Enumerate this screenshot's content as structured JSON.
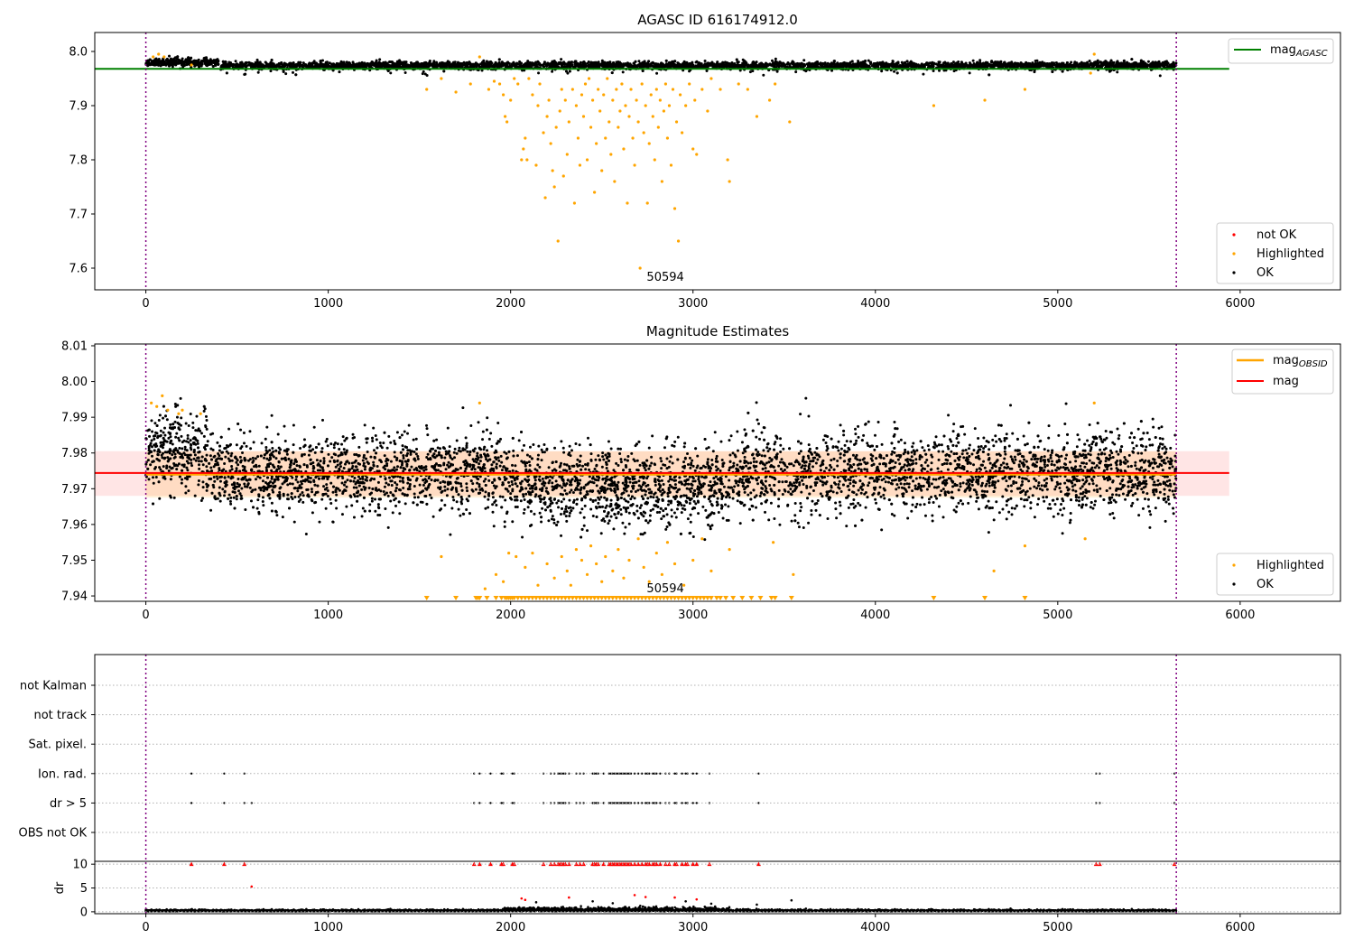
{
  "chart_data": [
    {
      "type": "scatter",
      "title": "AGASC ID 616174912.0",
      "xlim": [
        -280,
        6550
      ],
      "ylim": [
        7.56,
        8.035
      ],
      "x_ticks": [
        "0",
        "1000",
        "2000",
        "3000",
        "4000",
        "5000",
        "6000"
      ],
      "y_ticks": [
        "7.6",
        "7.7",
        "7.8",
        "7.9",
        "8.0"
      ],
      "legend_top": {
        "position": "top-right",
        "entries": [
          {
            "name": "mag",
            "subscript": "AGASC",
            "color": "#008000"
          }
        ]
      },
      "legend_bottom": {
        "position": "bottom-right",
        "entries": [
          {
            "name": "not OK",
            "color": "#ff0000"
          },
          {
            "name": "Highlighted",
            "color": "#ffa500"
          },
          {
            "name": "OK",
            "color": "#000000"
          }
        ]
      },
      "mag_agasc": 7.968,
      "mag_agasc_x_range": [
        -280,
        5940
      ],
      "obsid_label": "50594",
      "obsid_label_x": 2700,
      "obsid_bounds_x": [
        0,
        5650
      ],
      "ok_band": {
        "x_range": [
          0,
          5650
        ],
        "center": 7.974,
        "half_width": 0.007,
        "min": 7.955
      },
      "highlighted": [
        [
          1540,
          7.93
        ],
        [
          1620,
          7.95
        ],
        [
          1700,
          7.925
        ],
        [
          1780,
          7.94
        ],
        [
          1830,
          7.99
        ],
        [
          1880,
          7.93
        ],
        [
          1910,
          7.945
        ],
        [
          1940,
          7.94
        ],
        [
          1960,
          7.92
        ],
        [
          1970,
          7.88
        ],
        [
          1980,
          7.87
        ],
        [
          2000,
          7.91
        ],
        [
          2020,
          7.95
        ],
        [
          2040,
          7.94
        ],
        [
          2060,
          7.8
        ],
        [
          2070,
          7.82
        ],
        [
          2080,
          7.84
        ],
        [
          2090,
          7.8
        ],
        [
          2100,
          7.95
        ],
        [
          2120,
          7.92
        ],
        [
          2140,
          7.79
        ],
        [
          2150,
          7.9
        ],
        [
          2160,
          7.94
        ],
        [
          2180,
          7.85
        ],
        [
          2190,
          7.73
        ],
        [
          2200,
          7.88
        ],
        [
          2210,
          7.91
        ],
        [
          2220,
          7.83
        ],
        [
          2230,
          7.78
        ],
        [
          2240,
          7.75
        ],
        [
          2250,
          7.86
        ],
        [
          2260,
          7.65
        ],
        [
          2270,
          7.89
        ],
        [
          2280,
          7.93
        ],
        [
          2290,
          7.77
        ],
        [
          2300,
          7.91
        ],
        [
          2310,
          7.81
        ],
        [
          2320,
          7.87
        ],
        [
          2340,
          7.93
        ],
        [
          2350,
          7.72
        ],
        [
          2360,
          7.9
        ],
        [
          2370,
          7.84
        ],
        [
          2380,
          7.79
        ],
        [
          2390,
          7.92
        ],
        [
          2400,
          7.88
        ],
        [
          2410,
          7.94
        ],
        [
          2420,
          7.8
        ],
        [
          2430,
          7.95
        ],
        [
          2440,
          7.86
        ],
        [
          2450,
          7.91
        ],
        [
          2460,
          7.74
        ],
        [
          2470,
          7.83
        ],
        [
          2480,
          7.93
        ],
        [
          2490,
          7.89
        ],
        [
          2500,
          7.78
        ],
        [
          2510,
          7.92
        ],
        [
          2520,
          7.84
        ],
        [
          2530,
          7.95
        ],
        [
          2540,
          7.87
        ],
        [
          2550,
          7.81
        ],
        [
          2560,
          7.91
        ],
        [
          2570,
          7.76
        ],
        [
          2580,
          7.93
        ],
        [
          2590,
          7.86
        ],
        [
          2600,
          7.89
        ],
        [
          2610,
          7.94
        ],
        [
          2620,
          7.82
        ],
        [
          2630,
          7.9
        ],
        [
          2640,
          7.72
        ],
        [
          2650,
          7.88
        ],
        [
          2660,
          7.93
        ],
        [
          2670,
          7.84
        ],
        [
          2680,
          7.79
        ],
        [
          2690,
          7.91
        ],
        [
          2700,
          7.87
        ],
        [
          2710,
          7.6
        ],
        [
          2720,
          7.94
        ],
        [
          2730,
          7.85
        ],
        [
          2740,
          7.9
        ],
        [
          2750,
          7.72
        ],
        [
          2760,
          7.83
        ],
        [
          2770,
          7.92
        ],
        [
          2780,
          7.88
        ],
        [
          2790,
          7.8
        ],
        [
          2800,
          7.93
        ],
        [
          2810,
          7.86
        ],
        [
          2820,
          7.91
        ],
        [
          2830,
          7.76
        ],
        [
          2840,
          7.89
        ],
        [
          2850,
          7.94
        ],
        [
          2860,
          7.84
        ],
        [
          2870,
          7.9
        ],
        [
          2880,
          7.79
        ],
        [
          2890,
          7.93
        ],
        [
          2900,
          7.71
        ],
        [
          2910,
          7.87
        ],
        [
          2920,
          7.65
        ],
        [
          2930,
          7.92
        ],
        [
          2940,
          7.85
        ],
        [
          2960,
          7.9
        ],
        [
          2980,
          7.94
        ],
        [
          3000,
          7.82
        ],
        [
          3010,
          7.91
        ],
        [
          3020,
          7.81
        ],
        [
          3050,
          7.93
        ],
        [
          3080,
          7.89
        ],
        [
          3100,
          7.95
        ],
        [
          3150,
          7.93
        ],
        [
          3190,
          7.8
        ],
        [
          3200,
          7.76
        ],
        [
          3250,
          7.94
        ],
        [
          3300,
          7.93
        ],
        [
          3350,
          7.88
        ],
        [
          3420,
          7.91
        ],
        [
          3450,
          7.94
        ],
        [
          3530,
          7.87
        ],
        [
          4320,
          7.9
        ],
        [
          4600,
          7.91
        ],
        [
          4820,
          7.93
        ],
        [
          5200,
          7.995
        ],
        [
          5180,
          7.96
        ],
        [
          40,
          7.99
        ],
        [
          70,
          7.995
        ],
        [
          100,
          7.99
        ],
        [
          250,
          7.975
        ]
      ]
    },
    {
      "type": "scatter",
      "title": "Magnitude Estimates",
      "xlim": [
        -280,
        6550
      ],
      "ylim": [
        7.9385,
        8.0105
      ],
      "x_ticks": [
        "0",
        "1000",
        "2000",
        "3000",
        "4000",
        "5000",
        "6000"
      ],
      "y_ticks": [
        "7.94",
        "7.95",
        "7.96",
        "7.97",
        "7.98",
        "7.99",
        "8.00",
        "8.01"
      ],
      "legend_top": {
        "position": "top-right",
        "entries": [
          {
            "name": "mag",
            "subscript": "OBSID",
            "color": "#ffa500"
          },
          {
            "name": "mag",
            "color": "#ff0000"
          }
        ]
      },
      "legend_bottom": {
        "position": "bottom-right",
        "entries": [
          {
            "name": "Highlighted",
            "color": "#ffa500"
          },
          {
            "name": "OK",
            "color": "#000000"
          }
        ]
      },
      "mag": 7.9744,
      "mag_band": [
        7.968,
        7.9805
      ],
      "mag_x_range": [
        -280,
        5940
      ],
      "mag_obsid": 7.974,
      "mag_obsid_band": [
        7.9675,
        7.9805
      ],
      "mag_obsid_x_range": [
        0,
        5650
      ],
      "obsid_label": "50594",
      "obsid_label_x": 2700,
      "obsid_bounds_x": [
        0,
        5650
      ],
      "highlighted": [
        [
          30,
          7.994
        ],
        [
          60,
          7.993
        ],
        [
          90,
          7.996
        ],
        [
          120,
          7.992
        ],
        [
          180,
          7.991
        ],
        [
          200,
          7.992
        ],
        [
          300,
          7.991
        ],
        [
          1830,
          7.994
        ],
        [
          5200,
          7.994
        ],
        [
          1620,
          7.951
        ],
        [
          1860,
          7.942
        ],
        [
          1920,
          7.946
        ],
        [
          1960,
          7.944
        ],
        [
          1990,
          7.952
        ],
        [
          2030,
          7.951
        ],
        [
          2080,
          7.948
        ],
        [
          2120,
          7.952
        ],
        [
          2150,
          7.943
        ],
        [
          2200,
          7.949
        ],
        [
          2240,
          7.945
        ],
        [
          2280,
          7.951
        ],
        [
          2310,
          7.947
        ],
        [
          2330,
          7.943
        ],
        [
          2360,
          7.953
        ],
        [
          2390,
          7.95
        ],
        [
          2420,
          7.946
        ],
        [
          2440,
          7.954
        ],
        [
          2470,
          7.949
        ],
        [
          2500,
          7.944
        ],
        [
          2520,
          7.951
        ],
        [
          2560,
          7.947
        ],
        [
          2590,
          7.953
        ],
        [
          2620,
          7.945
        ],
        [
          2650,
          7.95
        ],
        [
          2700,
          7.956
        ],
        [
          2730,
          7.948
        ],
        [
          2760,
          7.944
        ],
        [
          2800,
          7.952
        ],
        [
          2830,
          7.946
        ],
        [
          2860,
          7.955
        ],
        [
          2900,
          7.949
        ],
        [
          2950,
          7.943
        ],
        [
          3000,
          7.95
        ],
        [
          3050,
          7.956
        ],
        [
          3100,
          7.947
        ],
        [
          3200,
          7.953
        ],
        [
          3440,
          7.955
        ],
        [
          3550,
          7.946
        ],
        [
          4650,
          7.947
        ],
        [
          4820,
          7.954
        ],
        [
          5150,
          7.956
        ]
      ],
      "below_range_x": [
        1540,
        1700,
        1810,
        1820,
        1830,
        1870,
        1920,
        1950,
        1970,
        1980,
        1990,
        2000,
        2010,
        2020,
        2040,
        2060,
        2080,
        2100,
        2120,
        2140,
        2160,
        2180,
        2200,
        2220,
        2240,
        2260,
        2280,
        2300,
        2320,
        2340,
        2360,
        2380,
        2400,
        2420,
        2440,
        2460,
        2480,
        2500,
        2520,
        2540,
        2560,
        2580,
        2600,
        2620,
        2640,
        2660,
        2680,
        2700,
        2720,
        2740,
        2760,
        2780,
        2800,
        2820,
        2840,
        2860,
        2880,
        2900,
        2920,
        2940,
        2960,
        2980,
        3000,
        3020,
        3040,
        3060,
        3080,
        3100,
        3130,
        3150,
        3180,
        3220,
        3270,
        3320,
        3370,
        3430,
        3450,
        3540,
        4320,
        4600,
        4820
      ],
      "below_range_y": 7.9385
    },
    {
      "type": "scatter",
      "title": "",
      "xlim": [
        -280,
        6550
      ],
      "x_ticks": [
        "0",
        "1000",
        "2000",
        "3000",
        "4000",
        "5000",
        "6000"
      ],
      "flag_categories": [
        "not Kalman",
        "not track",
        "Sat. pixel.",
        "Ion. rad.",
        "dr > 5",
        "OBS not OK"
      ],
      "flag_points": {
        "Ion. rad.": [
          250,
          430,
          540,
          1800,
          1830,
          1890,
          1950,
          1960,
          2010,
          2020,
          2180,
          2220,
          2240,
          2260,
          2270,
          2280,
          2290,
          2300,
          2320,
          2360,
          2380,
          2400,
          2450,
          2460,
          2470,
          2480,
          2510,
          2540,
          2550,
          2560,
          2570,
          2580,
          2590,
          2600,
          2610,
          2620,
          2630,
          2640,
          2650,
          2660,
          2680,
          2700,
          2720,
          2740,
          2750,
          2760,
          2780,
          2790,
          2800,
          2820,
          2850,
          2870,
          2900,
          2910,
          2940,
          2960,
          2970,
          3000,
          3020,
          3090,
          3360,
          5210,
          5230,
          5640
        ],
        "dr > 5": [
          250,
          430,
          540,
          580,
          1800,
          1830,
          1890,
          1950,
          1960,
          2010,
          2020,
          2180,
          2220,
          2240,
          2260,
          2270,
          2280,
          2290,
          2300,
          2320,
          2360,
          2380,
          2400,
          2450,
          2460,
          2470,
          2480,
          2510,
          2540,
          2550,
          2560,
          2570,
          2580,
          2590,
          2600,
          2610,
          2620,
          2630,
          2640,
          2650,
          2660,
          2680,
          2700,
          2720,
          2740,
          2750,
          2760,
          2780,
          2790,
          2800,
          2820,
          2850,
          2870,
          2900,
          2910,
          2940,
          2960,
          2970,
          3000,
          3020,
          3090,
          3360,
          5210,
          5230,
          5640
        ]
      },
      "dr": {
        "ylabel": "dr",
        "ylim": [
          -0.4,
          10.6
        ],
        "y_ticks": [
          "0",
          "5",
          "10"
        ],
        "clipped_x": [
          250,
          430,
          540,
          1800,
          1830,
          1890,
          1950,
          1960,
          2010,
          2020,
          2180,
          2220,
          2240,
          2260,
          2270,
          2280,
          2290,
          2300,
          2320,
          2360,
          2380,
          2400,
          2450,
          2460,
          2470,
          2480,
          2510,
          2540,
          2550,
          2560,
          2570,
          2580,
          2590,
          2600,
          2610,
          2620,
          2630,
          2640,
          2650,
          2660,
          2680,
          2700,
          2720,
          2740,
          2750,
          2760,
          2780,
          2790,
          2800,
          2820,
          2850,
          2870,
          2900,
          2910,
          2940,
          2960,
          2970,
          3000,
          3020,
          3090,
          3360,
          5210,
          5230,
          5640
        ],
        "outliers": [
          [
            580,
            5.3
          ],
          [
            2060,
            2.8
          ],
          [
            2080,
            2.5
          ],
          [
            2140,
            2.0
          ],
          [
            2320,
            3.0
          ],
          [
            2450,
            2.2
          ],
          [
            2560,
            1.8
          ],
          [
            2680,
            3.5
          ],
          [
            2740,
            3.1
          ],
          [
            2900,
            3.0
          ],
          [
            2960,
            2.2
          ],
          [
            3020,
            2.6
          ],
          [
            3100,
            1.7
          ],
          [
            3350,
            1.5
          ],
          [
            3540,
            2.4
          ]
        ]
      }
    }
  ]
}
